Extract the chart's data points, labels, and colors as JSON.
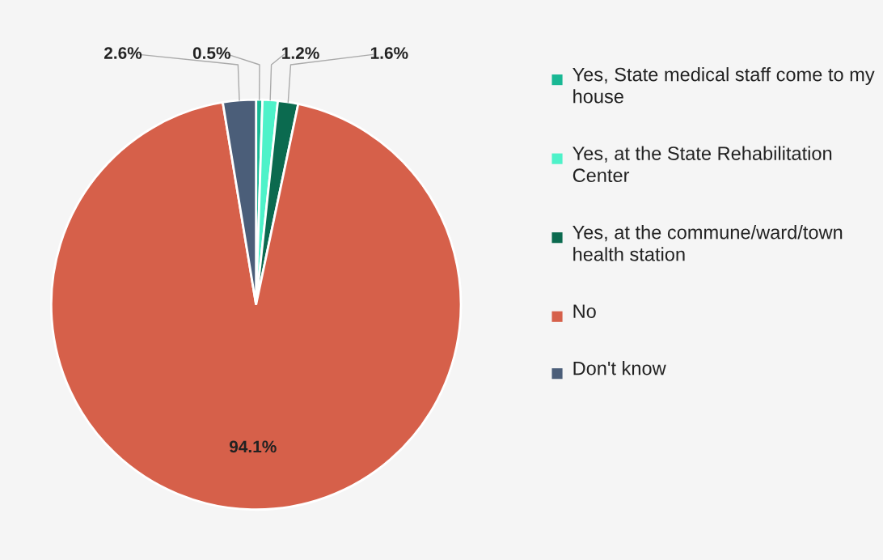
{
  "chart_data": {
    "type": "pie",
    "categories": [
      "Yes, State medical staff come to my house",
      "Yes, at the State Rehabilitation Center",
      "Yes, at the commune/ward/town health station",
      "No",
      "Don't know"
    ],
    "values": [
      0.5,
      1.2,
      1.6,
      94.1,
      2.6
    ],
    "colors": [
      "#19b894",
      "#4ef2c9",
      "#0b6a4f",
      "#d6604a",
      "#4b5e79"
    ],
    "value_labels": [
      "0.5%",
      "1.2%",
      "1.6%",
      "94.1%",
      "2.6%"
    ],
    "legend": "right"
  }
}
